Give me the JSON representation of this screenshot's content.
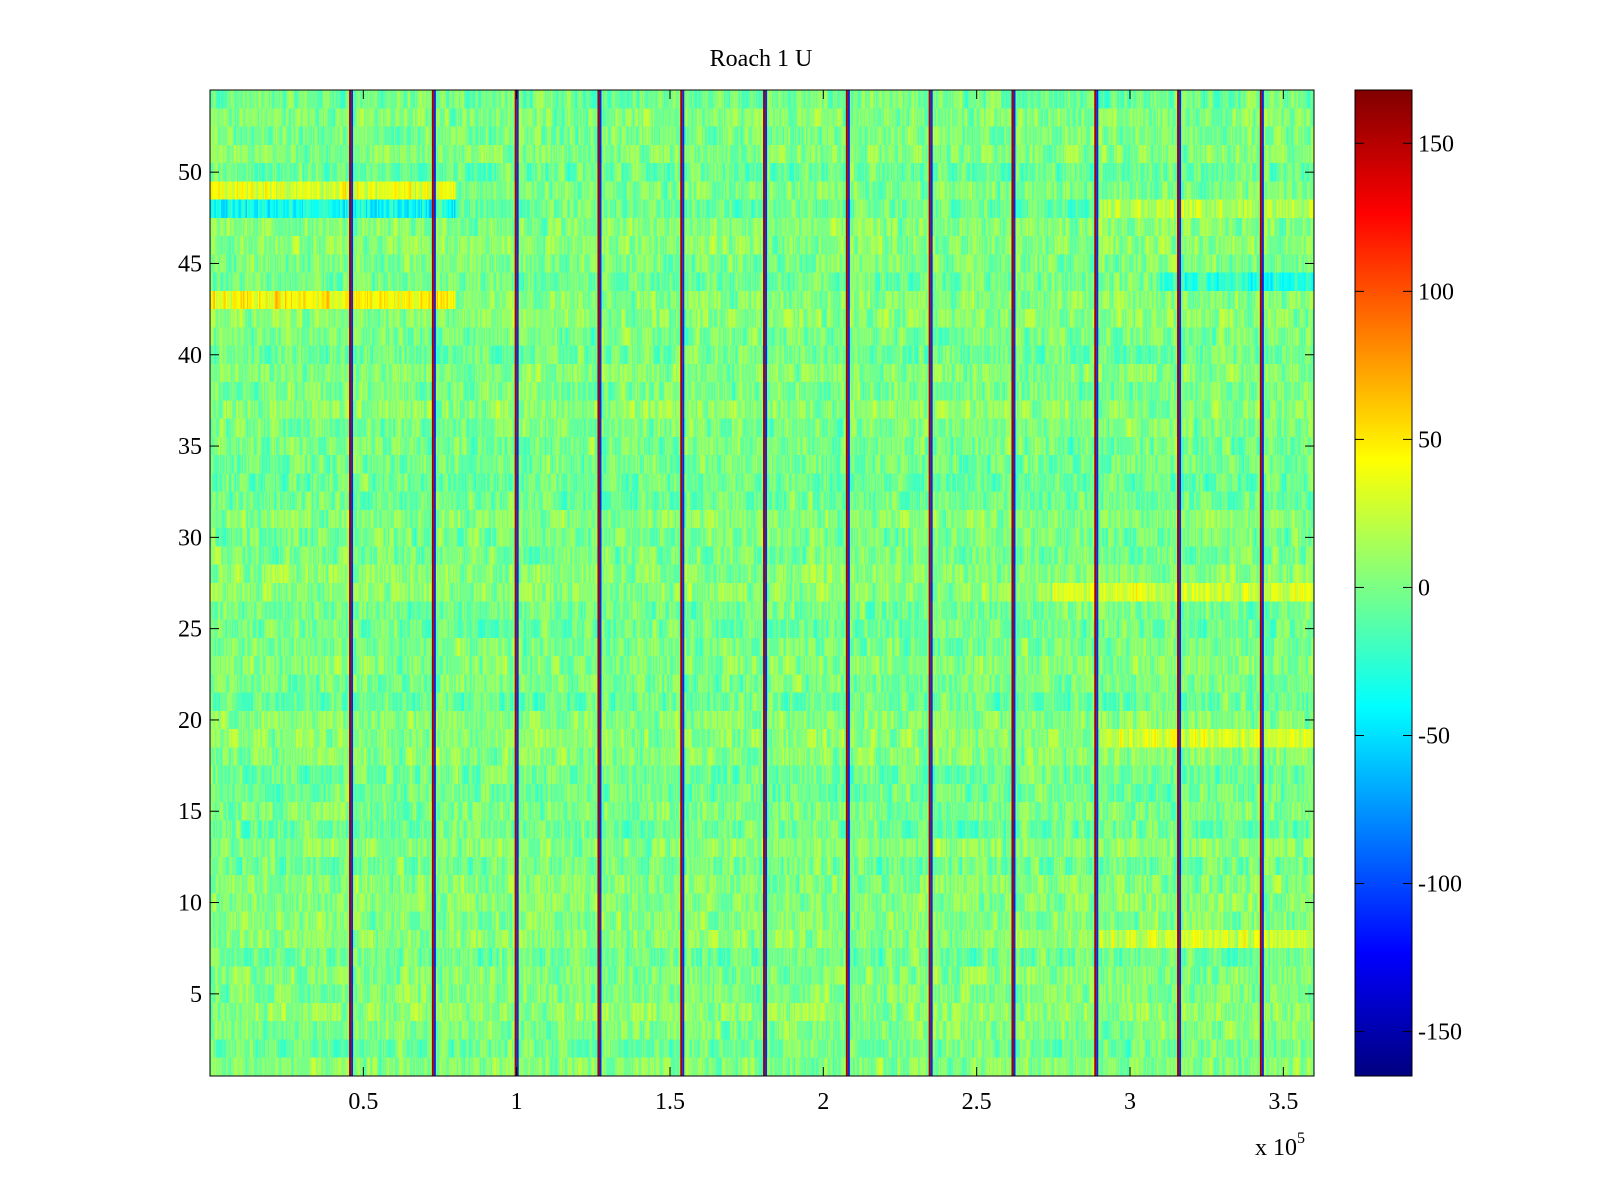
{
  "chart_data": {
    "type": "heatmap",
    "title": "Roach 1 U",
    "xlabel": "",
    "ylabel": "",
    "x_exponent_label": "x 10",
    "x_exponent_power": "5",
    "xlim": [
      0,
      3.6
    ],
    "ylim": [
      0.5,
      54.5
    ],
    "x_ticks": [
      0.5,
      1,
      1.5,
      2,
      2.5,
      3,
      3.5
    ],
    "x_tick_labels": [
      "0.5",
      "1",
      "1.5",
      "2",
      "2.5",
      "3",
      "3.5"
    ],
    "y_ticks": [
      5,
      10,
      15,
      20,
      25,
      30,
      35,
      40,
      45,
      50
    ],
    "y_tick_labels": [
      "5",
      "10",
      "15",
      "20",
      "25",
      "30",
      "35",
      "40",
      "45",
      "50"
    ],
    "rows": 54,
    "colormap": "jet",
    "colorbar": {
      "range": [
        -165,
        168
      ],
      "ticks": [
        -150,
        -100,
        -50,
        0,
        50,
        100,
        150
      ],
      "tick_labels": [
        "-150",
        "-100",
        "-50",
        "0",
        "50",
        "100",
        "150"
      ]
    },
    "vertical_events_x": [
      0.46,
      0.73,
      1.0,
      1.27,
      1.54,
      1.81,
      2.08,
      2.35,
      2.62,
      2.89,
      3.16,
      3.43
    ],
    "event_red_value": 155,
    "event_blue_value": -130,
    "background_mean": 0,
    "noise_amplitude": 30,
    "row_bias": [
      {
        "row": 43,
        "x_range": [
          0,
          0.8
        ],
        "value": 50
      },
      {
        "row": 49,
        "x_range": [
          0,
          0.8
        ],
        "value": 40
      },
      {
        "row": 48,
        "x_range": [
          0,
          0.8
        ],
        "value": -40
      },
      {
        "row": 48,
        "x_range": [
          2.9,
          3.6
        ],
        "value": 35
      },
      {
        "row": 27,
        "x_range": [
          2.75,
          3.6
        ],
        "value": 30
      },
      {
        "row": 19,
        "x_range": [
          2.9,
          3.6
        ],
        "value": 28
      },
      {
        "row": 8,
        "x_range": [
          2.9,
          3.6
        ],
        "value": 28
      },
      {
        "row": 44,
        "x_range": [
          3.1,
          3.6
        ],
        "value": -30
      }
    ]
  }
}
